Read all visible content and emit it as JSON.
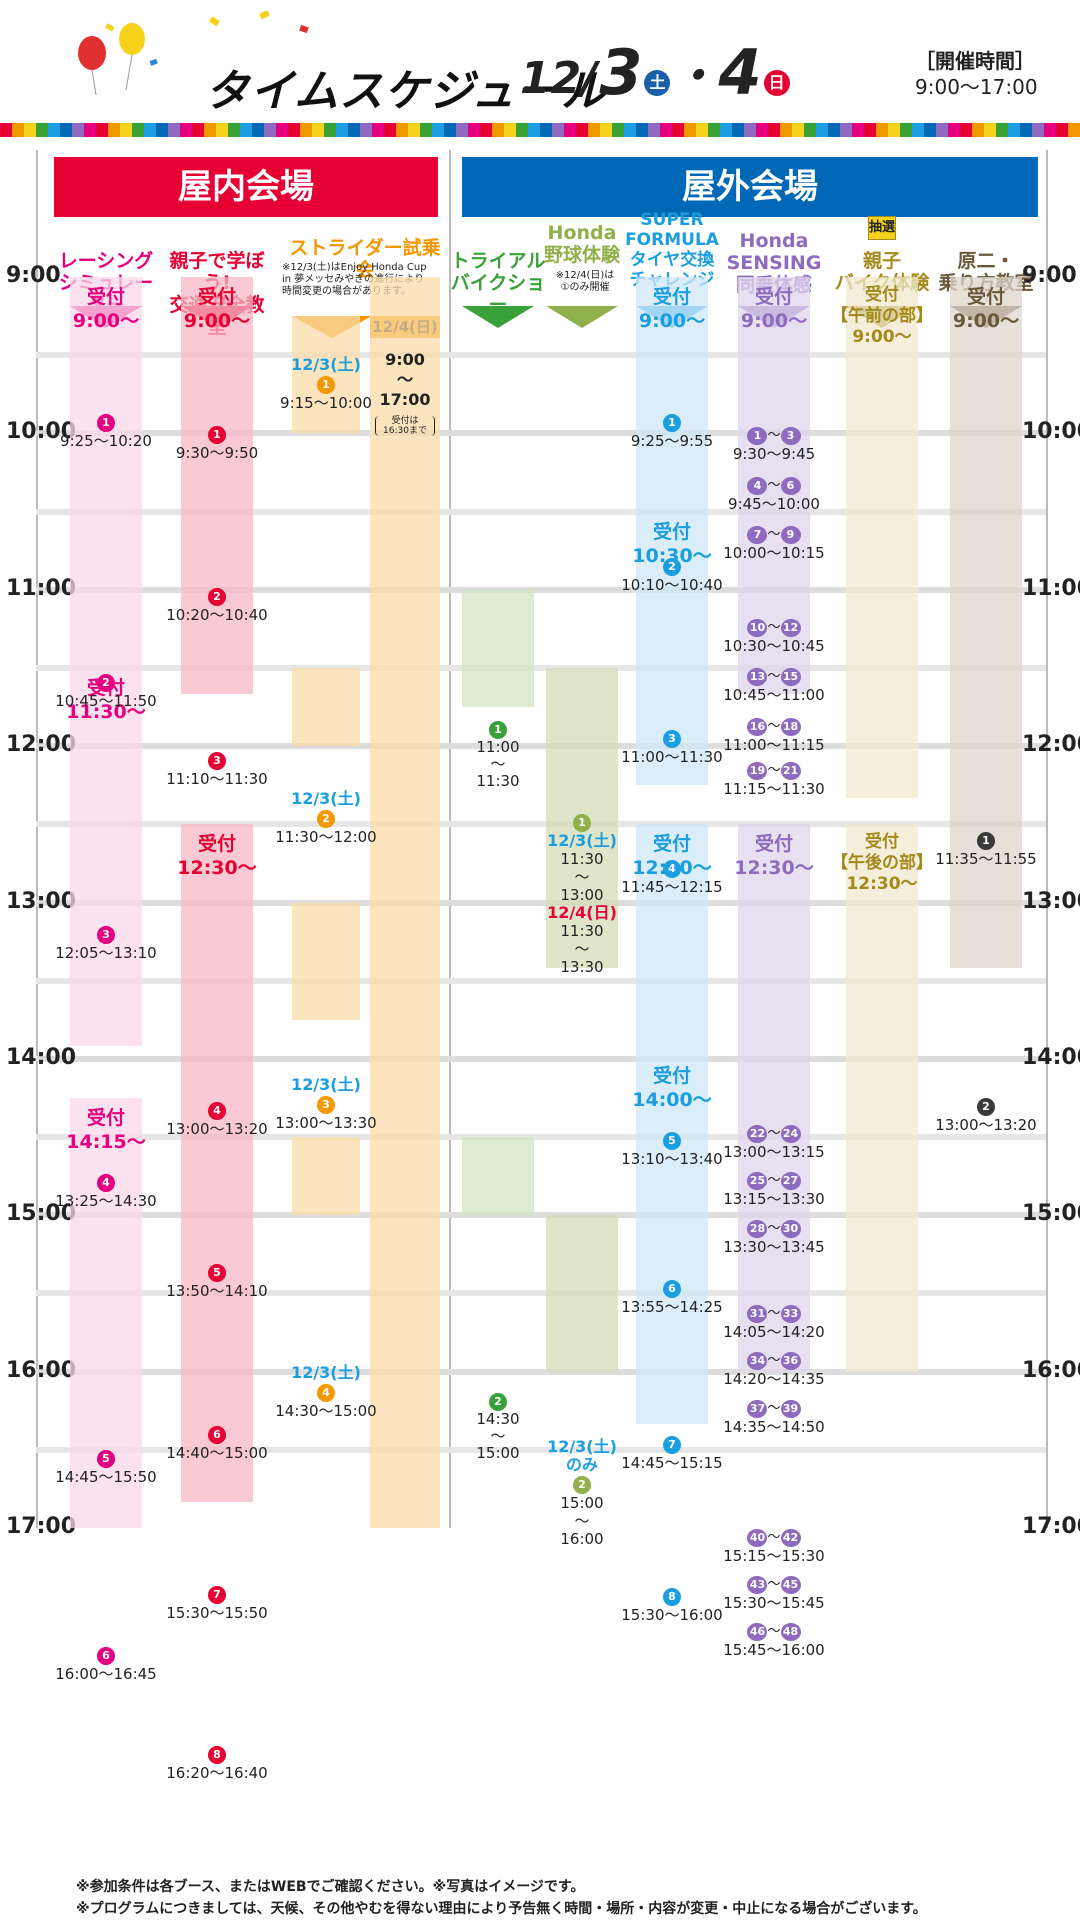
{
  "header": {
    "title": "タイムスケジュール",
    "date_month": "12/",
    "date_day1": "3",
    "day1_dow": "土",
    "sep": "・",
    "date_day2": "4",
    "day2_dow": "日",
    "open_label": "［開催時間］",
    "open_time": "9:00〜17:00"
  },
  "halls": {
    "indoor": "屋内会場",
    "outdoor": "屋外会場"
  },
  "columns": {
    "racing": [
      "レーシング",
      "シミュレーター"
    ],
    "safety": [
      "親子で学ぼう!",
      "交通安全教室"
    ],
    "strider": "ストライダー試乗会",
    "strider_note": [
      "※12/3(土)はEnjoy Honda Cup",
      "in 夢メッセみやぎの進行により",
      "時間変更の場合があります。"
    ],
    "trial": [
      "トライアル",
      "バイクショー"
    ],
    "baseball": [
      "Honda",
      "野球体験"
    ],
    "baseball_note": [
      "※12/4(日)は",
      "①のみ開催"
    ],
    "formula": [
      "SUPER",
      "FORMULA",
      "タイヤ交換",
      "チャレンジ"
    ],
    "sensing": [
      "Honda",
      "SENSING",
      "同乗体感"
    ],
    "lottery": "抽選",
    "bike": [
      "親子",
      "バイク体験"
    ],
    "genni": [
      "原二・",
      "乗り方教室"
    ]
  },
  "times": [
    "9:00",
    "10:00",
    "11:00",
    "12:00",
    "13:00",
    "14:00",
    "15:00",
    "16:00",
    "17:00"
  ],
  "racing": {
    "r1": [
      "受付",
      "9:00〜"
    ],
    "r2": [
      "受付",
      "11:30〜"
    ],
    "r3": [
      "受付",
      "14:15〜"
    ],
    "e": [
      [
        "1",
        "9:25〜10:20"
      ],
      [
        "2",
        "10:45〜11:50"
      ],
      [
        "3",
        "12:05〜13:10"
      ],
      [
        "4",
        "13:25〜14:30"
      ],
      [
        "5",
        "14:45〜15:50"
      ],
      [
        "6",
        "16:00〜16:45"
      ]
    ]
  },
  "safety": {
    "r1": [
      "受付",
      "9:00〜"
    ],
    "r2": [
      "受付",
      "12:30〜"
    ],
    "e": [
      [
        "1",
        "9:30〜9:50"
      ],
      [
        "2",
        "10:20〜10:40"
      ],
      [
        "3",
        "11:10〜11:30"
      ],
      [
        "4",
        "13:00〜13:20"
      ],
      [
        "5",
        "13:50〜14:10"
      ],
      [
        "6",
        "14:40〜15:00"
      ],
      [
        "7",
        "15:30〜15:50"
      ],
      [
        "8",
        "16:20〜16:40"
      ]
    ]
  },
  "strider": {
    "sat": "12/3(土)",
    "sun": "12/4(日)",
    "e": [
      [
        "1",
        "9:15〜10:00"
      ],
      [
        "2",
        "11:30〜12:00"
      ],
      [
        "3",
        "13:00〜13:30"
      ],
      [
        "4",
        "14:30〜15:00"
      ]
    ],
    "sun_start": "9:00",
    "tilde": "〜",
    "sun_end": "17:00",
    "sun_note": [
      "受付は",
      "16:30まで"
    ]
  },
  "trial": {
    "e": [
      [
        "1",
        "11:00",
        "11:30"
      ],
      [
        "2",
        "14:30",
        "15:00"
      ]
    ]
  },
  "baseball": {
    "sat": "12/3(土)",
    "sun": "12/4(日)",
    "only": "のみ",
    "e1_sat": [
      "11:30",
      "13:00"
    ],
    "e1_sun": [
      "11:30",
      "13:30"
    ],
    "e2": [
      "15:00",
      "16:00"
    ]
  },
  "formula": {
    "r1": [
      "受付",
      "9:00〜"
    ],
    "r2": [
      "受付",
      "10:30〜"
    ],
    "r3": [
      "受付",
      "12:30〜"
    ],
    "r4": [
      "受付",
      "14:00〜"
    ],
    "e": [
      [
        "1",
        "9:25〜9:55"
      ],
      [
        "2",
        "10:10〜10:40"
      ],
      [
        "3",
        "11:00〜11:30"
      ],
      [
        "4",
        "11:45〜12:15"
      ],
      [
        "5",
        "13:10〜13:40"
      ],
      [
        "6",
        "13:55〜14:25"
      ],
      [
        "7",
        "14:45〜15:15"
      ],
      [
        "8",
        "15:30〜16:00"
      ]
    ]
  },
  "sensing": {
    "r1": [
      "受付",
      "9:00〜"
    ],
    "r2": [
      "受付",
      "12:30〜"
    ],
    "e": [
      [
        "1",
        "3",
        "9:30〜9:45"
      ],
      [
        "4",
        "6",
        "9:45〜10:00"
      ],
      [
        "7",
        "9",
        "10:00〜10:15"
      ],
      [
        "10",
        "12",
        "10:30〜10:45"
      ],
      [
        "13",
        "15",
        "10:45〜11:00"
      ],
      [
        "16",
        "18",
        "11:00〜11:15"
      ],
      [
        "19",
        "21",
        "11:15〜11:30"
      ],
      [
        "22",
        "24",
        "13:00〜13:15"
      ],
      [
        "25",
        "27",
        "13:15〜13:30"
      ],
      [
        "28",
        "30",
        "13:30〜13:45"
      ],
      [
        "31",
        "33",
        "14:05〜14:20"
      ],
      [
        "34",
        "36",
        "14:20〜14:35"
      ],
      [
        "37",
        "39",
        "14:35〜14:50"
      ],
      [
        "40",
        "42",
        "15:15〜15:30"
      ],
      [
        "43",
        "45",
        "15:30〜15:45"
      ],
      [
        "46",
        "48",
        "15:45〜16:00"
      ]
    ],
    "range_sep": "〜"
  },
  "bike": {
    "r1": [
      "受付",
      "【午前の部】",
      "9:00〜"
    ],
    "r2": [
      "受付",
      "【午後の部】",
      "12:30〜"
    ]
  },
  "genni": {
    "r1": [
      "受付",
      "9:00〜"
    ],
    "e": [
      [
        "1",
        "11:35〜11:55"
      ],
      [
        "2",
        "13:00〜13:20"
      ]
    ]
  },
  "footer": [
    "※参加条件は各ブース、またはWEBでご確認ください。※写真はイメージです。",
    "※プログラムにつきましては、天候、その他やむを得ない理由により予告無く時間・場所・内容が変更・中止になる場合がございます。"
  ],
  "colors": {
    "indoor": "#e60033",
    "outdoor": "#0068b7",
    "racing": "#e4007f",
    "safety": "#e60033",
    "strider": "#f39800",
    "trial": "#3aa13a",
    "baseball": "#8fb04a",
    "formula": "#1a9ee0",
    "sensing": "#8e6bbf",
    "bike": "#a38a1a",
    "genni": "#6b5a3a"
  }
}
